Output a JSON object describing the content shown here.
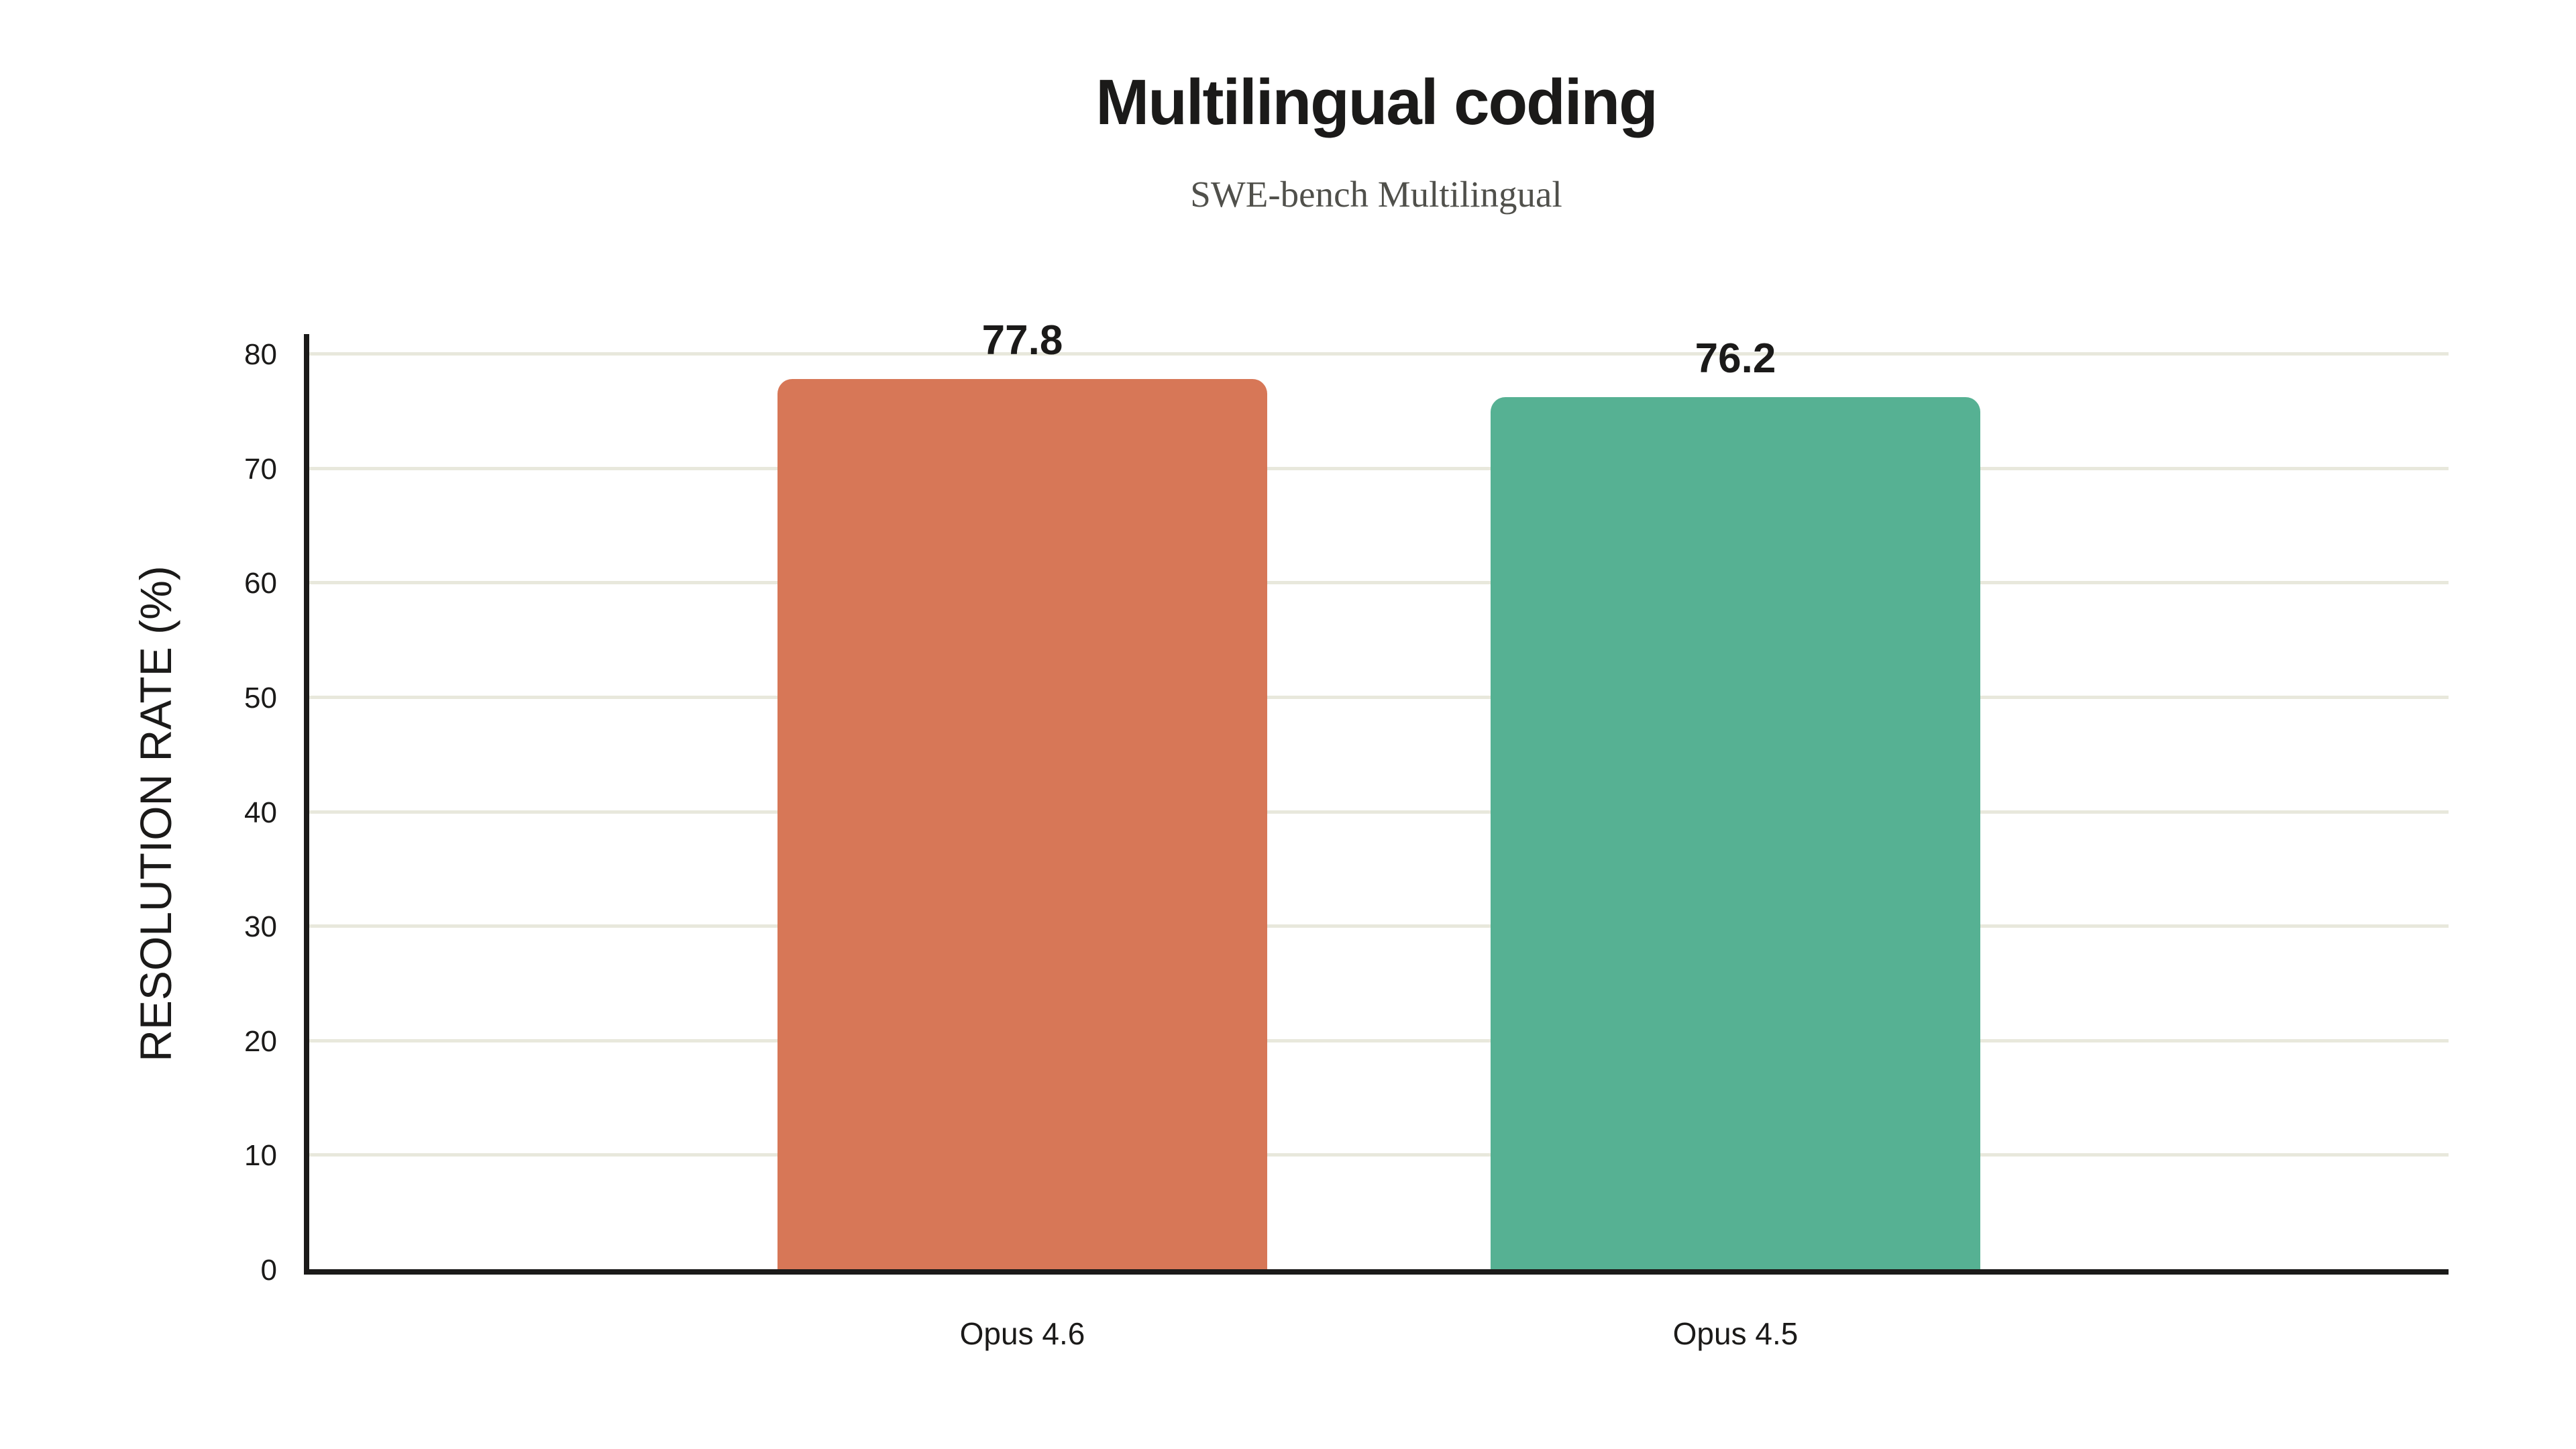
{
  "chart_data": {
    "type": "bar",
    "title": "Multilingual coding",
    "subtitle": "SWE-bench Multilingual",
    "categories": [
      "Opus 4.6",
      "Opus 4.5"
    ],
    "values": [
      77.8,
      76.2
    ],
    "value_labels": [
      "77.8",
      "76.2"
    ],
    "bar_colors": [
      "#D77757",
      "#56B193"
    ],
    "xlabel": "",
    "ylabel": "RESOLUTION RATE (%)",
    "ylim": [
      0,
      80
    ],
    "yticks": [
      0,
      10,
      20,
      30,
      40,
      50,
      60,
      70,
      80
    ],
    "grid": "horizontal-only",
    "legend": "none",
    "colors": {
      "background": "#FFFFFF",
      "gridline": "#E8E8DC",
      "axis": "#1B1A19",
      "title_text": "#1B1A19",
      "subtitle_text": "#50504B",
      "label_text": "#1B1A19"
    }
  }
}
